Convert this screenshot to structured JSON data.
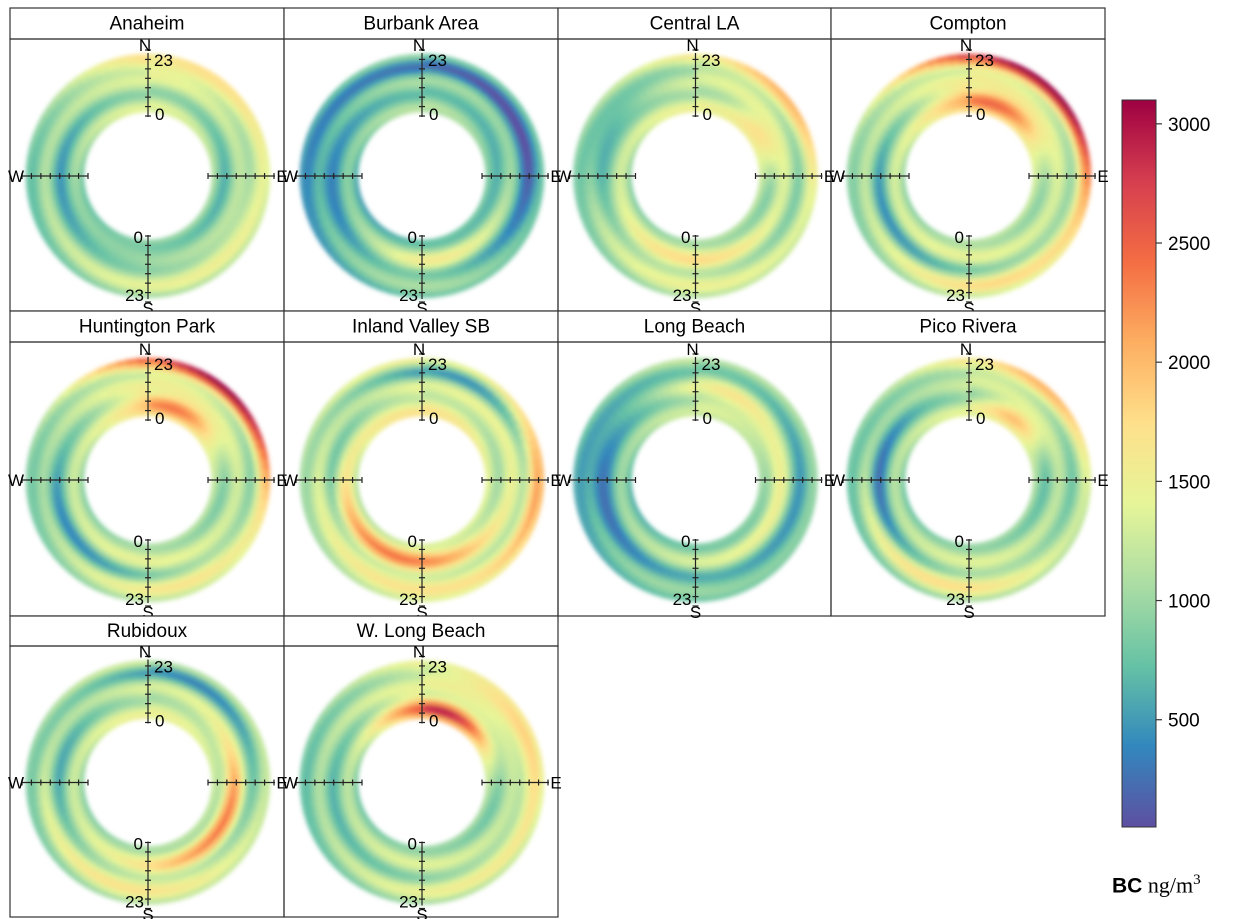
{
  "chart_data": {
    "type": "polar-annulus",
    "description_axis": "hour of day (0 inner to 23 outer) vs wind direction",
    "panels": [
      {
        "title": "Anaheim",
        "row": 0,
        "col": 0
      },
      {
        "title": "Burbank Area",
        "row": 0,
        "col": 1
      },
      {
        "title": "Central LA",
        "row": 0,
        "col": 2
      },
      {
        "title": "Compton",
        "row": 0,
        "col": 3
      },
      {
        "title": "Huntington Park",
        "row": 1,
        "col": 0
      },
      {
        "title": "Inland Valley SB",
        "row": 1,
        "col": 1
      },
      {
        "title": "Long Beach",
        "row": 1,
        "col": 2
      },
      {
        "title": "Pico  Rivera",
        "row": 1,
        "col": 3
      },
      {
        "title": "Rubidoux",
        "row": 2,
        "col": 0
      },
      {
        "title": "W. Long Beach",
        "row": 2,
        "col": 1
      }
    ],
    "axis_labels": {
      "n": "N",
      "s": "S",
      "e": "E",
      "w": "W",
      "hour_start": "0",
      "hour_end": "23"
    },
    "colorbar": {
      "min": 50,
      "max": 3100,
      "ticks": [
        500,
        1000,
        1500,
        2000,
        2500,
        3000
      ],
      "colors": [
        "#5e4fa2",
        "#3288bd",
        "#66c2a5",
        "#abdda4",
        "#e6f598",
        "#fee08b",
        "#fdae61",
        "#f46d43",
        "#d53e4f",
        "#9e0142"
      ],
      "label_bold": "BC",
      "label_unit": "ng/m",
      "label_sup": "3"
    }
  }
}
